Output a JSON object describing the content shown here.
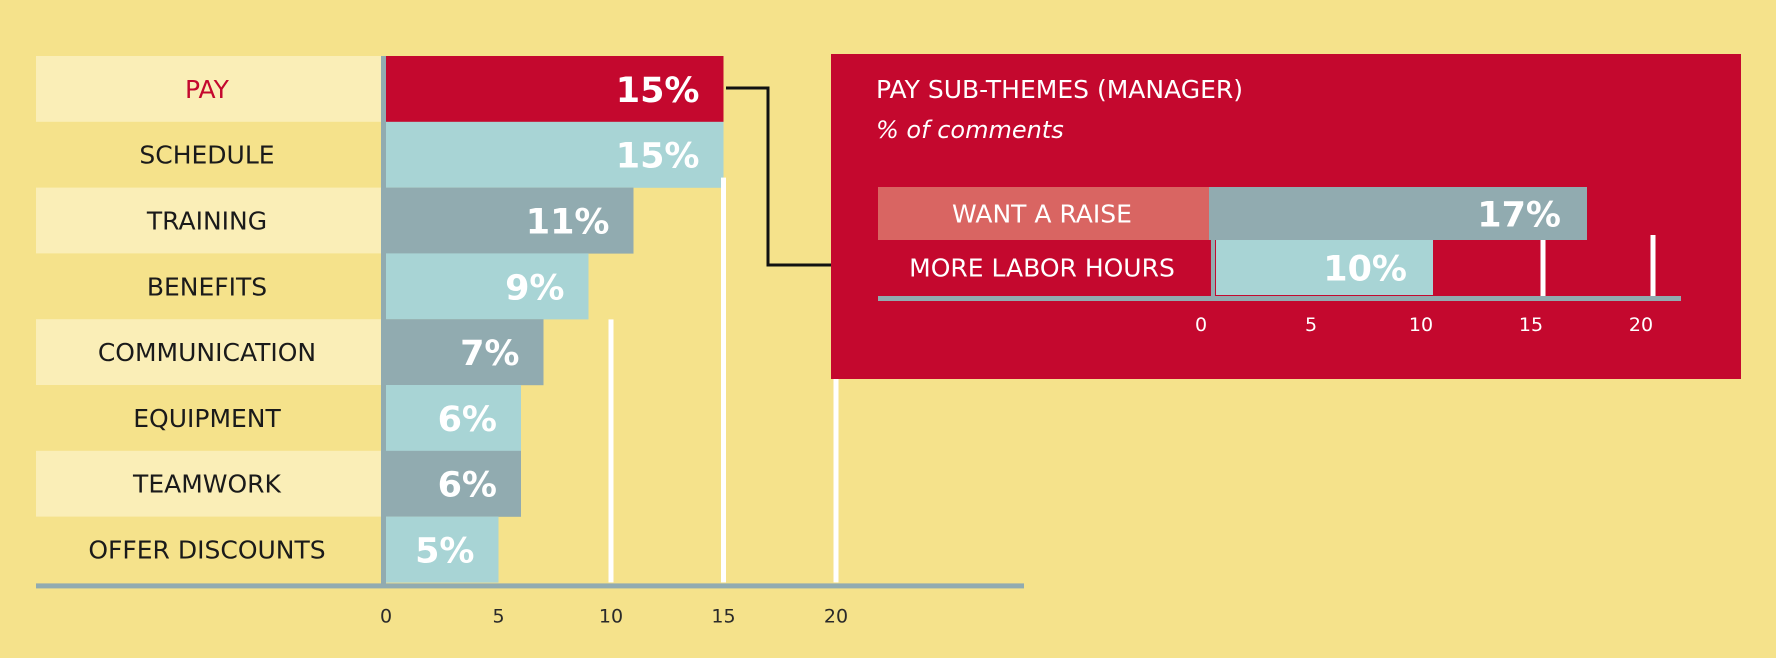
{
  "chart_data": [
    {
      "type": "bar",
      "orientation": "horizontal",
      "categories": [
        "PAY",
        "SCHEDULE",
        "TRAINING",
        "BENEFITS",
        "COMMUNICATION",
        "EQUIPMENT",
        "TEAMWORK",
        "OFFER DISCOUNTS"
      ],
      "values": [
        15,
        15,
        11,
        9,
        7,
        6,
        6,
        5
      ],
      "value_labels": [
        "15%",
        "15%",
        "11%",
        "9%",
        "7%",
        "6%",
        "6%",
        "5%"
      ],
      "highlighted_category": "PAY",
      "xlim": [
        0,
        20
      ],
      "xticks": [
        0,
        5,
        10,
        15,
        20
      ],
      "title": "",
      "xlabel": "",
      "ylabel": "",
      "grid": true
    },
    {
      "type": "bar",
      "orientation": "horizontal",
      "title": "PAY SUB-THEMES (MANAGER)",
      "subtitle": "% of comments",
      "categories": [
        "WANT A RAISE",
        "MORE LABOR HOURS"
      ],
      "values": [
        17,
        10
      ],
      "value_labels": [
        "17%",
        "10%"
      ],
      "xlim": [
        0,
        20
      ],
      "xticks": [
        0,
        5,
        10,
        15,
        20
      ],
      "grid": true
    }
  ],
  "colors": {
    "background": "#f5e28b",
    "label_band_light": "#faeeb7",
    "highlight_red": "#c4082e",
    "bar_light_teal": "#a8d4d5",
    "bar_gray_teal": "#91abb0",
    "axis": "#91abb0",
    "inset_label_pink": "#d96562"
  }
}
